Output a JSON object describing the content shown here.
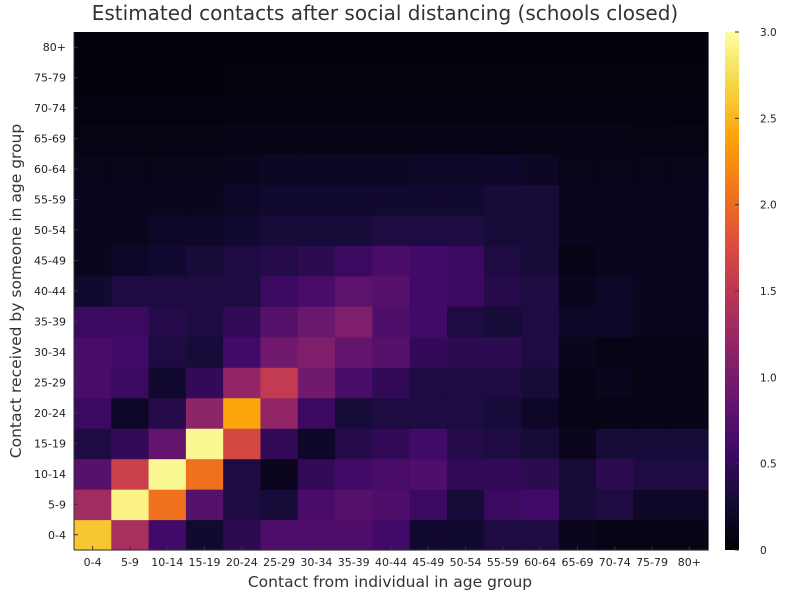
{
  "chart_data": {
    "type": "heatmap",
    "title": "Estimated contacts after social distancing (schools closed)",
    "xlabel": "Contact from individual in age group",
    "ylabel": "Contact received by someone in age group",
    "categories": [
      "0-4",
      "5-9",
      "10-14",
      "15-19",
      "20-24",
      "25-29",
      "30-34",
      "35-39",
      "40-44",
      "45-49",
      "50-54",
      "55-59",
      "60-64",
      "65-69",
      "70-74",
      "75-79",
      "80+"
    ],
    "colorscale": "inferno",
    "colorbar": {
      "min": 0,
      "max": 3.0,
      "ticks": [
        "0",
        "0.5",
        "1.0",
        "1.5",
        "2.0",
        "2.5",
        "3.0"
      ]
    },
    "grid": false,
    "values_row_order": "rows listed from age group 0-4 (bottom) to 80+ (top); columns from 0-4 (left) to 80+ (right)",
    "values": [
      [
        2.6,
        1.35,
        0.6,
        0.25,
        0.45,
        0.7,
        0.7,
        0.7,
        0.6,
        0.25,
        0.25,
        0.35,
        0.35,
        0.15,
        0.1,
        0.1,
        0.1
      ],
      [
        1.3,
        2.9,
        2.05,
        0.75,
        0.35,
        0.3,
        0.65,
        0.75,
        0.7,
        0.55,
        0.3,
        0.55,
        0.6,
        0.3,
        0.35,
        0.2,
        0.2
      ],
      [
        0.75,
        1.6,
        2.95,
        2.05,
        0.35,
        0.15,
        0.5,
        0.6,
        0.65,
        0.7,
        0.5,
        0.5,
        0.45,
        0.3,
        0.45,
        0.35,
        0.35
      ],
      [
        0.35,
        0.5,
        0.85,
        2.95,
        1.7,
        0.5,
        0.2,
        0.4,
        0.5,
        0.6,
        0.4,
        0.35,
        0.3,
        0.15,
        0.3,
        0.3,
        0.3
      ],
      [
        0.55,
        0.2,
        0.4,
        1.15,
        2.4,
        1.2,
        0.55,
        0.3,
        0.35,
        0.35,
        0.35,
        0.3,
        0.2,
        0.1,
        0.1,
        0.1,
        0.1
      ],
      [
        0.65,
        0.55,
        0.25,
        0.5,
        1.2,
        1.55,
        0.95,
        0.65,
        0.5,
        0.35,
        0.35,
        0.35,
        0.3,
        0.1,
        0.15,
        0.1,
        0.1
      ],
      [
        0.65,
        0.6,
        0.35,
        0.3,
        0.6,
        0.95,
        1.05,
        0.85,
        0.75,
        0.5,
        0.45,
        0.45,
        0.35,
        0.15,
        0.1,
        0.1,
        0.1
      ],
      [
        0.55,
        0.55,
        0.4,
        0.35,
        0.5,
        0.75,
        0.9,
        1.05,
        0.7,
        0.6,
        0.35,
        0.3,
        0.35,
        0.2,
        0.2,
        0.15,
        0.15
      ],
      [
        0.25,
        0.35,
        0.35,
        0.35,
        0.35,
        0.55,
        0.65,
        0.8,
        0.75,
        0.6,
        0.55,
        0.4,
        0.35,
        0.15,
        0.2,
        0.15,
        0.15
      ],
      [
        0.15,
        0.2,
        0.25,
        0.3,
        0.35,
        0.4,
        0.45,
        0.55,
        0.65,
        0.6,
        0.55,
        0.35,
        0.3,
        0.1,
        0.15,
        0.15,
        0.15
      ],
      [
        0.15,
        0.15,
        0.2,
        0.2,
        0.25,
        0.3,
        0.3,
        0.3,
        0.35,
        0.35,
        0.35,
        0.3,
        0.3,
        0.15,
        0.15,
        0.15,
        0.15
      ],
      [
        0.15,
        0.15,
        0.15,
        0.15,
        0.2,
        0.25,
        0.25,
        0.25,
        0.25,
        0.25,
        0.25,
        0.3,
        0.3,
        0.15,
        0.15,
        0.15,
        0.15
      ],
      [
        0.12,
        0.12,
        0.12,
        0.12,
        0.15,
        0.18,
        0.18,
        0.18,
        0.18,
        0.2,
        0.2,
        0.22,
        0.18,
        0.12,
        0.12,
        0.12,
        0.12
      ],
      [
        0.08,
        0.08,
        0.08,
        0.08,
        0.1,
        0.1,
        0.1,
        0.1,
        0.1,
        0.1,
        0.1,
        0.1,
        0.1,
        0.1,
        0.1,
        0.08,
        0.08
      ],
      [
        0.06,
        0.06,
        0.06,
        0.06,
        0.07,
        0.07,
        0.07,
        0.07,
        0.07,
        0.07,
        0.07,
        0.07,
        0.07,
        0.07,
        0.07,
        0.07,
        0.06
      ],
      [
        0.04,
        0.04,
        0.04,
        0.04,
        0.05,
        0.05,
        0.05,
        0.05,
        0.05,
        0.05,
        0.05,
        0.05,
        0.05,
        0.05,
        0.05,
        0.05,
        0.05
      ],
      [
        0.03,
        0.03,
        0.03,
        0.03,
        0.04,
        0.04,
        0.04,
        0.04,
        0.04,
        0.04,
        0.04,
        0.04,
        0.04,
        0.04,
        0.04,
        0.04,
        0.04
      ]
    ]
  }
}
